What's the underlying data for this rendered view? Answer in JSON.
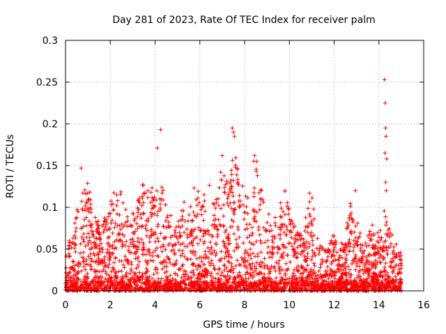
{
  "chart_data": {
    "type": "scatter",
    "title": "Day 281 of 2023, Rate Of TEC Index for receiver palm",
    "xlabel": "GPS time / hours",
    "ylabel": "ROTI / TECUs",
    "xlim": [
      0,
      16
    ],
    "ylim": [
      0,
      0.3
    ],
    "xticks": [
      0,
      2,
      4,
      6,
      8,
      10,
      12,
      14,
      16
    ],
    "xtick_labels": [
      "0",
      "2",
      "4",
      "6",
      "8",
      "10",
      "12",
      "14",
      "16"
    ],
    "yticks": [
      0,
      0.05,
      0.1,
      0.15,
      0.2,
      0.25,
      0.3
    ],
    "ytick_labels": [
      "0",
      "0.05",
      "0.1",
      "0.15",
      "0.2",
      "0.25",
      "0.3"
    ],
    "grid": true,
    "marker": "+",
    "color": "#ff0000",
    "x_data_range": [
      0.0,
      15.0
    ],
    "envelope": {
      "x": [
        0.0,
        0.3,
        0.6,
        0.8,
        1.0,
        1.3,
        1.6,
        1.9,
        2.2,
        2.5,
        2.8,
        3.1,
        3.4,
        3.7,
        4.0,
        4.3,
        4.6,
        4.9,
        5.2,
        5.5,
        5.8,
        6.1,
        6.4,
        6.7,
        7.0,
        7.3,
        7.5,
        7.8,
        8.1,
        8.4,
        8.6,
        8.9,
        9.2,
        9.5,
        9.8,
        10.1,
        10.4,
        10.7,
        11.0,
        11.3,
        11.6,
        11.9,
        12.2,
        12.5,
        12.8,
        13.1,
        13.4,
        13.7,
        14.0,
        14.2,
        14.4,
        14.7,
        15.0
      ],
      "max": [
        0.04,
        0.08,
        0.11,
        0.12,
        0.13,
        0.09,
        0.08,
        0.1,
        0.12,
        0.12,
        0.09,
        0.11,
        0.13,
        0.12,
        0.13,
        0.13,
        0.1,
        0.08,
        0.11,
        0.1,
        0.13,
        0.11,
        0.13,
        0.11,
        0.16,
        0.12,
        0.19,
        0.14,
        0.12,
        0.16,
        0.15,
        0.11,
        0.09,
        0.1,
        0.12,
        0.09,
        0.07,
        0.09,
        0.12,
        0.06,
        0.05,
        0.07,
        0.06,
        0.07,
        0.12,
        0.08,
        0.06,
        0.08,
        0.07,
        0.1,
        0.08,
        0.06,
        0.05
      ]
    },
    "notable_points": [
      {
        "x": 0.7,
        "y": 0.147
      },
      {
        "x": 4.1,
        "y": 0.171
      },
      {
        "x": 4.25,
        "y": 0.193
      },
      {
        "x": 7.45,
        "y": 0.195
      },
      {
        "x": 7.5,
        "y": 0.19
      },
      {
        "x": 7.55,
        "y": 0.185
      },
      {
        "x": 7.0,
        "y": 0.162
      },
      {
        "x": 8.45,
        "y": 0.162
      },
      {
        "x": 8.55,
        "y": 0.155
      },
      {
        "x": 10.9,
        "y": 0.117
      },
      {
        "x": 12.95,
        "y": 0.12
      },
      {
        "x": 14.25,
        "y": 0.253
      },
      {
        "x": 14.28,
        "y": 0.225
      },
      {
        "x": 14.3,
        "y": 0.195
      },
      {
        "x": 14.32,
        "y": 0.185
      },
      {
        "x": 14.27,
        "y": 0.165
      },
      {
        "x": 14.35,
        "y": 0.158
      },
      {
        "x": 14.3,
        "y": 0.13
      },
      {
        "x": 14.33,
        "y": 0.12
      }
    ]
  }
}
